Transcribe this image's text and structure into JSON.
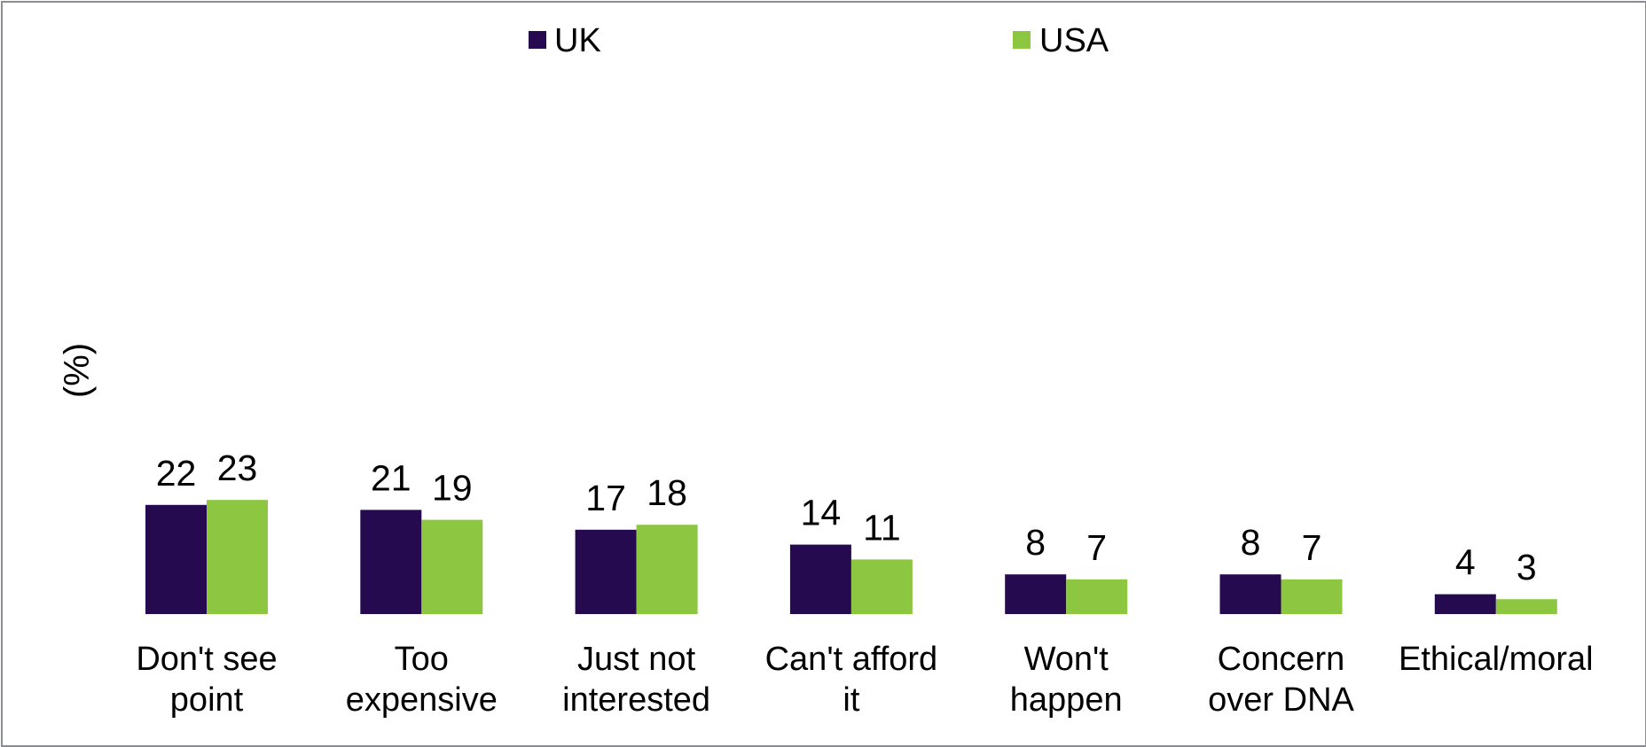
{
  "chart_data": {
    "type": "bar",
    "title": "",
    "xlabel": "",
    "ylabel": "(%)",
    "ylim": [
      0,
      100
    ],
    "grid": false,
    "legend_position": "top",
    "categories": [
      [
        "Don't see",
        "point"
      ],
      [
        "Too",
        "expensive"
      ],
      [
        "Just not",
        "interested"
      ],
      [
        "Can't afford",
        "it"
      ],
      [
        "Won't",
        "happen"
      ],
      [
        "Concern",
        "over DNA"
      ],
      [
        "Ethical/moral"
      ]
    ],
    "series": [
      {
        "name": "UK",
        "color": "#250a4f",
        "values": [
          22,
          21,
          17,
          14,
          8,
          8,
          4
        ]
      },
      {
        "name": "USA",
        "color": "#8dc641",
        "values": [
          23,
          19,
          18,
          11,
          7,
          7,
          3
        ]
      }
    ]
  }
}
